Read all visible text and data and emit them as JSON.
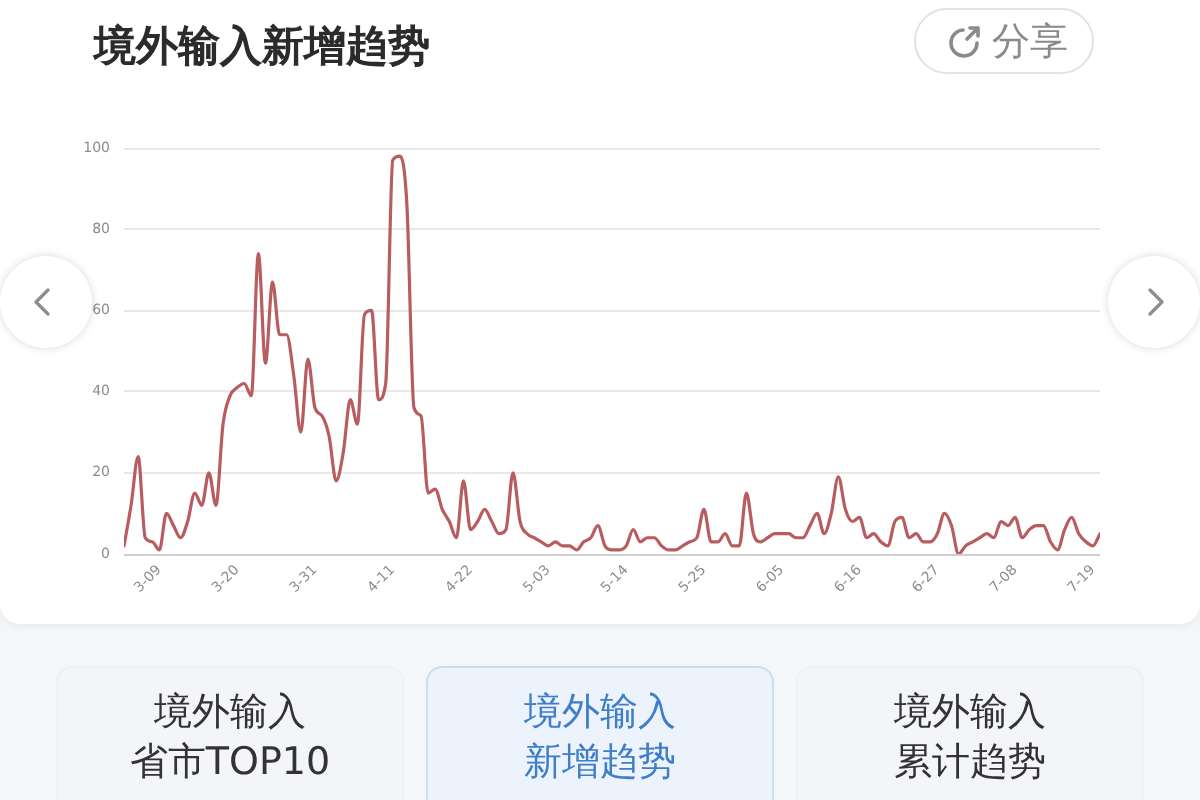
{
  "chart_data": {
    "type": "line",
    "title": "境外输入新增趋势",
    "annotations": [
      "分享",
      "境外输入",
      "省市TOP10",
      "境外输入",
      "新增趋势",
      "境外输入",
      "累计趋势"
    ],
    "x": [
      "--03-04",
      "--03-05",
      "--03-06",
      "--03-07",
      "--03-08",
      "--03-09",
      "--03-10",
      "--03-11",
      "--03-12",
      "--03-13",
      "--03-14",
      "--03-15",
      "--03-16",
      "--03-17",
      "--03-18",
      "--03-19",
      "--03-20",
      "--03-21",
      "--03-22",
      "--03-23",
      "--03-24",
      "--03-25",
      "--03-26",
      "--03-27",
      "--03-28",
      "--03-29",
      "--03-30",
      "--03-31",
      "--04-01",
      "--04-02",
      "--04-03",
      "--04-04",
      "--04-05",
      "--04-06",
      "--04-07",
      "--04-08",
      "--04-09",
      "--04-10",
      "--04-11",
      "--04-12",
      "--04-13",
      "--04-14",
      "--04-15",
      "--04-16",
      "--04-17",
      "--04-18",
      "--04-19",
      "--04-20",
      "--04-21",
      "--04-22",
      "--04-23",
      "--04-24",
      "--04-25",
      "--04-26",
      "--04-27",
      "--04-28",
      "--04-29",
      "--04-30",
      "--05-01",
      "--05-02",
      "--05-03",
      "--05-04",
      "--05-05",
      "--05-06",
      "--05-07",
      "--05-08",
      "--05-09",
      "--05-10",
      "--05-11",
      "--05-12",
      "--05-13",
      "--05-14",
      "--05-15",
      "--05-16",
      "--05-17",
      "--05-18",
      "--05-19",
      "--05-20",
      "--05-21",
      "--05-22",
      "--05-23",
      "--05-24",
      "--05-25",
      "--05-26",
      "--05-27",
      "--05-28",
      "--05-29",
      "--05-30",
      "--05-31",
      "--06-01",
      "--06-02",
      "--06-03",
      "--06-04",
      "--06-05",
      "--06-06",
      "--06-07",
      "--06-08",
      "--06-09",
      "--06-10",
      "--06-11",
      "--06-12",
      "--06-13",
      "--06-14",
      "--06-15",
      "--06-16",
      "--06-17",
      "--06-18",
      "--06-19",
      "--06-20",
      "--06-21",
      "--06-22",
      "--06-23",
      "--06-24",
      "--06-25",
      "--06-26",
      "--06-27",
      "--06-28",
      "--06-29",
      "--06-30",
      "--07-01",
      "--07-02",
      "--07-03",
      "--07-04",
      "--07-05",
      "--07-06",
      "--07-07",
      "--07-08",
      "--07-09",
      "--07-10",
      "--07-11",
      "--07-12",
      "--07-13",
      "--07-14",
      "--07-15",
      "--07-16",
      "--07-17",
      "--07-18",
      "--07-19",
      "--07-20"
    ],
    "series": [
      {
        "color": "#b85c5f",
        "values": [
          2,
          12,
          24,
          4,
          3,
          1,
          10,
          7,
          4,
          8,
          15,
          12,
          20,
          12,
          32,
          39,
          41,
          42,
          39,
          74,
          47,
          67,
          54,
          54,
          44,
          30,
          48,
          36,
          34,
          29,
          18,
          25,
          38,
          32,
          59,
          60,
          38,
          42,
          97,
          98,
          86,
          36,
          34,
          15,
          16,
          11,
          8,
          4,
          18,
          6,
          8,
          11,
          8,
          5,
          6,
          20,
          8,
          5,
          4,
          3,
          2,
          3,
          2,
          2,
          1,
          3,
          4,
          7,
          2,
          1,
          1,
          2,
          6,
          3,
          4,
          4,
          2,
          1,
          1,
          2,
          3,
          4,
          11,
          3,
          3,
          5,
          2,
          2,
          15,
          5,
          3,
          4,
          5,
          5,
          5,
          4,
          4,
          7,
          10,
          5,
          10,
          19,
          11,
          8,
          9,
          4,
          5,
          3,
          2,
          8,
          9,
          4,
          5,
          3,
          3,
          5,
          10,
          7,
          0,
          2,
          3,
          4,
          5,
          4,
          8,
          7,
          9,
          4,
          6,
          7,
          7,
          3,
          1,
          6,
          9,
          5,
          3,
          2,
          5
        ]
      }
    ],
    "xlim": [
      "--03-04",
      "--07-20"
    ],
    "xticks": [
      {
        "value": "--03-09",
        "label": "3-09"
      },
      {
        "value": "--03-20",
        "label": "3-20"
      },
      {
        "value": "--03-31",
        "label": "3-31"
      },
      {
        "value": "--04-11",
        "label": "4-11"
      },
      {
        "value": "--04-22",
        "label": "4-22"
      },
      {
        "value": "--05-03",
        "label": "5-03"
      },
      {
        "value": "--05-14",
        "label": "5-14"
      },
      {
        "value": "--05-25",
        "label": "5-25"
      },
      {
        "value": "--06-05",
        "label": "6-05"
      },
      {
        "value": "--06-16",
        "label": "6-16"
      },
      {
        "value": "--06-27",
        "label": "6-27"
      },
      {
        "value": "--07-08",
        "label": "7-08"
      },
      {
        "value": "--07-19",
        "label": "7-19"
      }
    ],
    "ylim": [
      0,
      100
    ],
    "yticks": [
      0,
      20,
      40,
      60,
      80,
      100
    ],
    "grid": "y"
  }
}
